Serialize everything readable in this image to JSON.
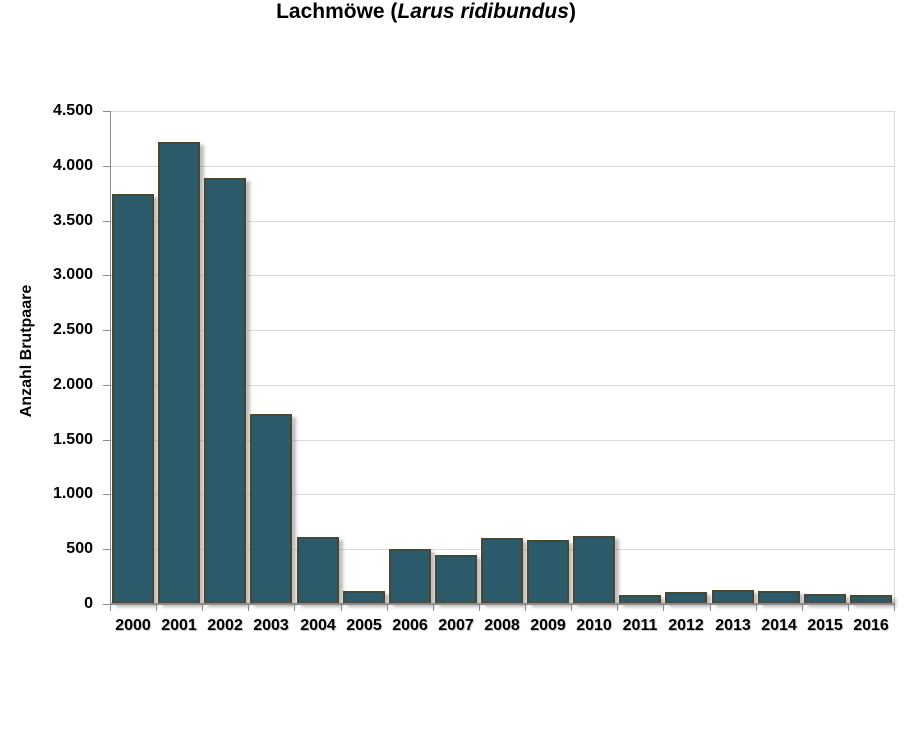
{
  "title": {
    "prefix": "Lachmöwe (",
    "species": "Larus ridibundus",
    "suffix": ")"
  },
  "chart_data": {
    "type": "bar",
    "title": "Lachmöwe (Larus ridibundus)",
    "categories": [
      "2000",
      "2001",
      "2002",
      "2003",
      "2004",
      "2005",
      "2006",
      "2007",
      "2008",
      "2009",
      "2010",
      "2011",
      "2012",
      "2013",
      "2014",
      "2015",
      "2016"
    ],
    "values": [
      3740,
      4220,
      3890,
      1730,
      610,
      115,
      505,
      450,
      600,
      585,
      620,
      80,
      105,
      125,
      120,
      95,
      85
    ],
    "xlabel": "",
    "ylabel": "Anzahl Brutpaare",
    "ylim": [
      0,
      4500
    ],
    "ytick_step": 500,
    "ytick_labels": [
      "0",
      "500",
      "1.000",
      "1.500",
      "2.000",
      "2.500",
      "3.000",
      "3.500",
      "4.000",
      "4.500"
    ],
    "grid": true,
    "legend": false,
    "colors": {
      "bar_fill": "#2B5A6A",
      "bar_border": "#4A4731",
      "gridline": "#D9D9D9",
      "axis": "#8C8C8C",
      "text": "#000000",
      "background": "#FFFFFF"
    }
  }
}
